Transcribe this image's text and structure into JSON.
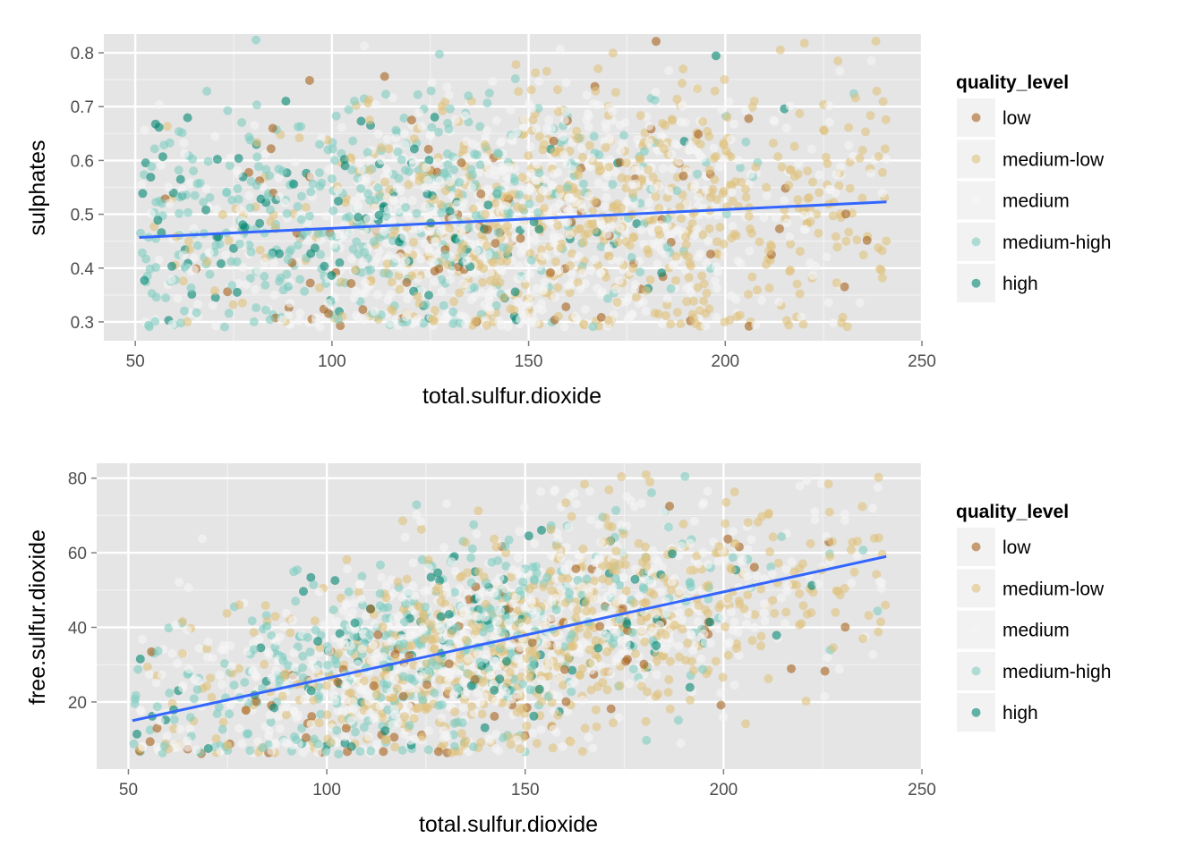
{
  "colors": {
    "panel_background": "#e5e5e5",
    "grid_major": "#ffffff",
    "grid_minor": "#f2f2f2",
    "tick_text": "#4d4d4d",
    "fit_line": "#3366ff",
    "legend_key_background": "#f2f2f2"
  },
  "legend": {
    "title": "quality_level",
    "levels": [
      {
        "label": "low",
        "color": "#a6611a"
      },
      {
        "label": "medium-low",
        "color": "#dfc27d"
      },
      {
        "label": "medium",
        "color": "#f5f5f5"
      },
      {
        "label": "medium-high",
        "color": "#80cdc1"
      },
      {
        "label": "high",
        "color": "#018571"
      }
    ]
  },
  "chart_data": [
    {
      "type": "scatter",
      "title": "",
      "xlabel": "total.sulfur.dioxide",
      "ylabel": "sulphates",
      "xlim": [
        42,
        250
      ],
      "ylim": [
        0.265,
        0.835
      ],
      "x_ticks": [
        50,
        100,
        150,
        200,
        250
      ],
      "x_tick_labels": [
        "50",
        "100",
        "150",
        "200",
        "250"
      ],
      "y_ticks": [
        0.3,
        0.4,
        0.5,
        0.6,
        0.7,
        0.8
      ],
      "y_tick_labels": [
        "0.3",
        "0.4",
        "0.5",
        "0.6",
        "0.7",
        "0.8"
      ],
      "grid": true,
      "legend_position": "right",
      "point_alpha": 0.6,
      "trend_line": {
        "x": [
          51,
          241
        ],
        "y": [
          0.457,
          0.523
        ]
      },
      "scatter_approx": {
        "x_range": [
          51,
          241
        ],
        "y_range": [
          0.29,
          0.83
        ],
        "center_x": 140,
        "center_y": 0.49,
        "points_per_level": [
          90,
          640,
          900,
          420,
          110
        ]
      }
    },
    {
      "type": "scatter",
      "title": "",
      "xlabel": "total.sulfur.dioxide",
      "ylabel": "free.sulfur.dioxide",
      "xlim": [
        42,
        250
      ],
      "ylim": [
        2,
        84
      ],
      "x_ticks": [
        50,
        100,
        150,
        200,
        250
      ],
      "x_tick_labels": [
        "50",
        "100",
        "150",
        "200",
        "250"
      ],
      "y_ticks": [
        20,
        40,
        60,
        80
      ],
      "y_tick_labels": [
        "20",
        "40",
        "60",
        "80"
      ],
      "grid": true,
      "legend_position": "right",
      "point_alpha": 0.6,
      "trend_line": {
        "x": [
          51,
          241
        ],
        "y": [
          15,
          59
        ]
      },
      "scatter_approx": {
        "x_range": [
          51,
          241
        ],
        "y_range": [
          6,
          81
        ],
        "center_x": 140,
        "center_y": 34,
        "points_per_level": [
          90,
          640,
          900,
          420,
          110
        ]
      }
    }
  ]
}
